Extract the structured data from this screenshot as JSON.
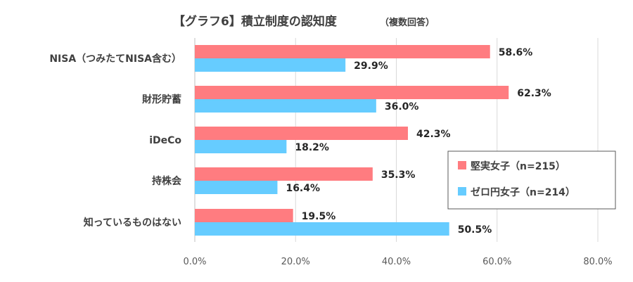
{
  "chart_data": {
    "type": "bar",
    "orientation": "horizontal",
    "title": "【グラフ6】積立制度の認知度",
    "title_note": "（複数回答）",
    "categories": [
      "NISA（つみたてNISA含む）",
      "財形貯蓄",
      "iDeCo",
      "持株会",
      "知っているものはない"
    ],
    "series": [
      {
        "name": "堅実女子（n=215）",
        "values": [
          58.6,
          62.3,
          42.3,
          35.3,
          19.5
        ],
        "labels": [
          "58.6%",
          "62.3%",
          "42.3%",
          "35.3%",
          "19.5%"
        ],
        "color": "#ff7c80"
      },
      {
        "name": "ゼロ円女子（n=214）",
        "values": [
          29.9,
          36.0,
          18.2,
          16.4,
          50.5
        ],
        "labels": [
          "29.9%",
          "36.0%",
          "18.2%",
          "16.4%",
          "50.5%"
        ],
        "color": "#66ccff"
      }
    ],
    "xlim": [
      0,
      80
    ],
    "x_ticks": [
      0,
      20,
      40,
      60,
      80
    ],
    "x_tick_labels": [
      "0.0%",
      "20.0%",
      "40.0%",
      "60.0%",
      "80.0%"
    ],
    "grid": true,
    "legend_position": "right"
  }
}
